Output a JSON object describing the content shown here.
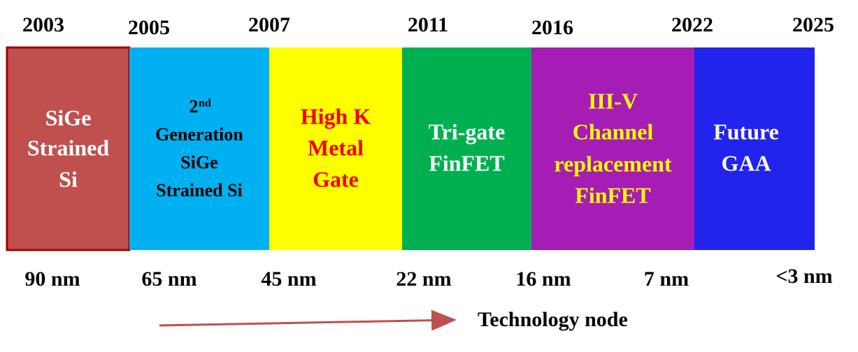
{
  "years": [
    "2003",
    "2005",
    "2007",
    "2011",
    "2016",
    "2022",
    "2025"
  ],
  "nodes": [
    "90 nm",
    "65 nm",
    "45 nm",
    "22 nm",
    "16 nm",
    "7 nm",
    "<3 nm"
  ],
  "blocks": [
    {
      "lines": [
        "SiGe",
        "Strained",
        "Si"
      ]
    },
    {
      "ordinal": "2",
      "ordinal_suffix": "nd",
      "lines": [
        "Generation",
        "SiGe",
        "Strained Si"
      ]
    },
    {
      "lines": [
        "High K",
        "Metal",
        "Gate"
      ]
    },
    {
      "lines": [
        "Tri-gate",
        "FinFET"
      ]
    },
    {
      "lines": [
        "III-V",
        "Channel",
        "replacement",
        "FinFET"
      ]
    },
    {
      "lines": [
        "Future",
        "GAA"
      ]
    }
  ],
  "axis_label": "Technology node"
}
